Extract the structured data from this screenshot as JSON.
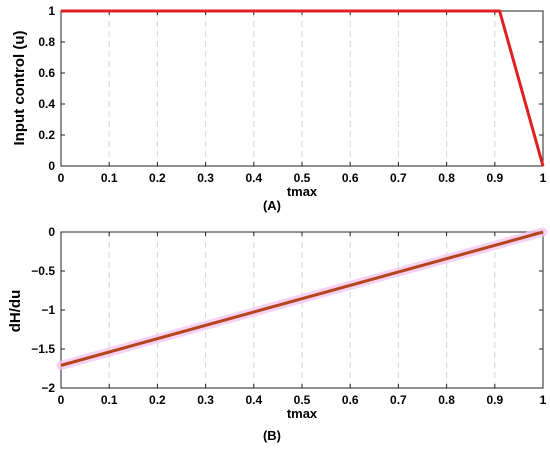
{
  "chart_data": [
    {
      "type": "line",
      "panel_label": "(A)",
      "xlabel": "tmax",
      "ylabel": "Input control (u)",
      "xlim": [
        0,
        1
      ],
      "ylim": [
        0,
        1
      ],
      "xticks": [
        0,
        0.1,
        0.2,
        0.3,
        0.4,
        0.5,
        0.6,
        0.7,
        0.8,
        0.9,
        1
      ],
      "xtick_labels": [
        "0",
        "0.1",
        "0.2",
        "0.3",
        "0.4",
        "0.5",
        "0.6",
        "0.7",
        "0.8",
        "0.9",
        "1"
      ],
      "yticks": [
        0,
        0.2,
        0.4,
        0.6,
        0.8,
        1
      ],
      "ytick_labels": [
        "0",
        "0.2",
        "0.4",
        "0.6",
        "0.8",
        "1"
      ],
      "grid": "vertical dashed",
      "series": [
        {
          "color": "#e02020",
          "x": [
            0,
            0.9,
            0.91,
            1
          ],
          "y": [
            1,
            1,
            1,
            0
          ]
        }
      ]
    },
    {
      "type": "line",
      "panel_label": "(B)",
      "xlabel": "tmax",
      "ylabel": "dH/du",
      "xlim": [
        0,
        1
      ],
      "ylim": [
        -2,
        0
      ],
      "xticks": [
        0,
        0.1,
        0.2,
        0.3,
        0.4,
        0.5,
        0.6,
        0.7,
        0.8,
        0.9,
        1
      ],
      "xtick_labels": [
        "0",
        "0.1",
        "0.2",
        "0.3",
        "0.4",
        "0.5",
        "0.6",
        "0.7",
        "0.8",
        "0.9",
        "1"
      ],
      "yticks": [
        -2,
        -1.5,
        -1,
        -0.5,
        0
      ],
      "ytick_labels": [
        "−2",
        "−1.5",
        "−1",
        "−0.5",
        "0"
      ],
      "grid": "vertical dashed",
      "series": [
        {
          "color": "#b5451b",
          "highlight": "#f4c6f0",
          "x": [
            0,
            1
          ],
          "y": [
            -1.71,
            0
          ]
        }
      ]
    }
  ]
}
